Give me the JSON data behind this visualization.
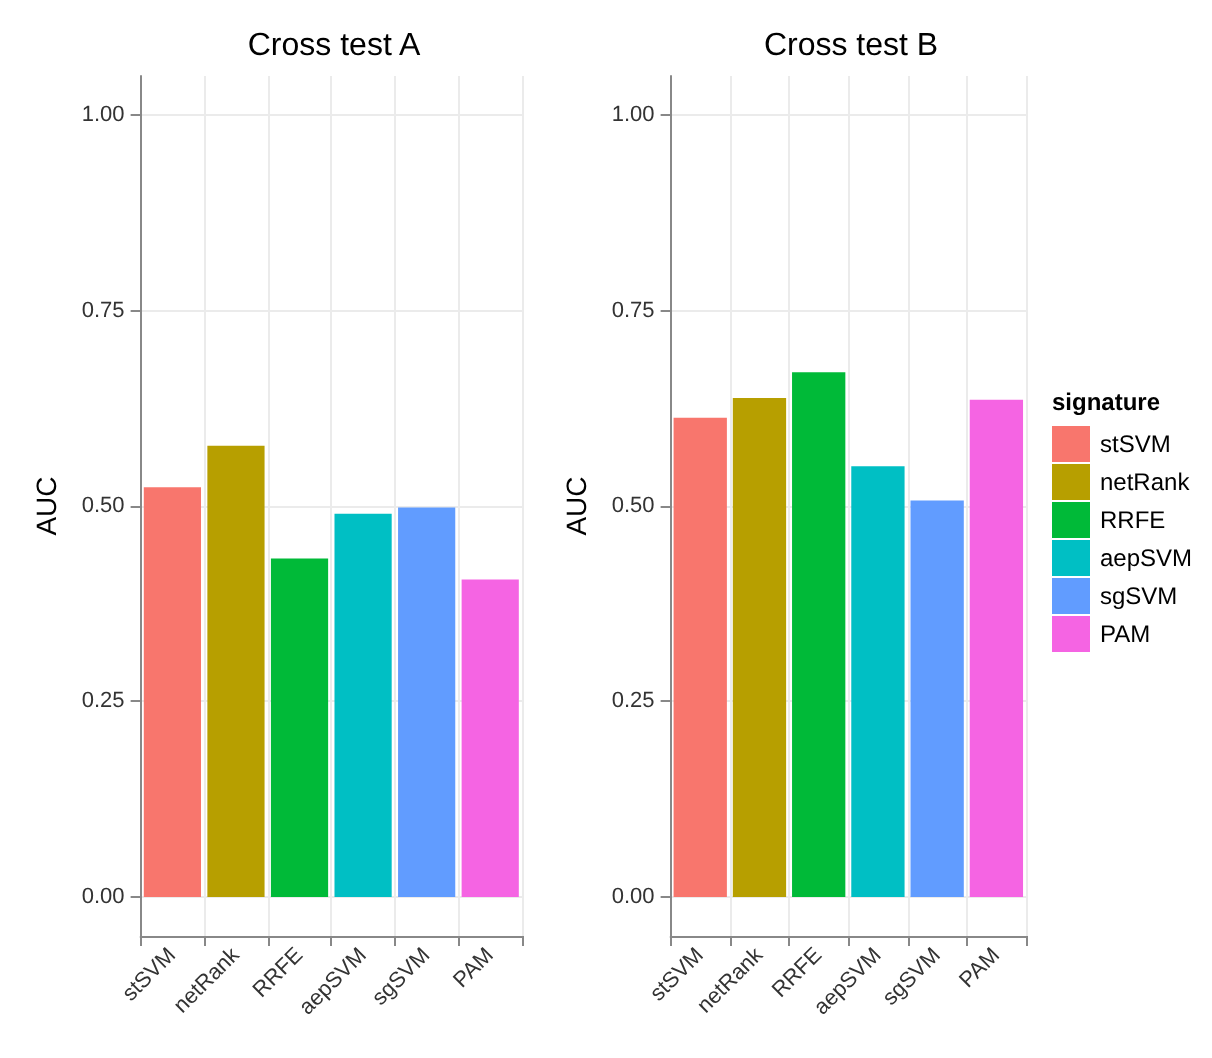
{
  "chart_data": [
    {
      "type": "bar",
      "title": "Cross test A",
      "ylabel": "AUC",
      "categories": [
        "stSVM",
        "netRank",
        "RRFE",
        "aepSVM",
        "sgSVM",
        "PAM"
      ],
      "stacked": true,
      "series": [
        {
          "color": "#f8766d",
          "values": [
            0.524,
            null,
            null,
            null,
            null,
            null
          ]
        },
        {
          "color": "#b79f00",
          "values": [
            null,
            0.577,
            null,
            null,
            null,
            null
          ]
        },
        {
          "color": "#00ba38",
          "values": [
            null,
            null,
            0.433,
            null,
            null,
            null
          ]
        },
        {
          "color": "#00bfc4",
          "values": [
            null,
            null,
            null,
            0.49,
            null,
            null
          ]
        },
        {
          "color": "#619cff",
          "values": [
            null,
            null,
            null,
            null,
            0.498,
            null
          ]
        },
        {
          "color": "#f564e3",
          "values": [
            null,
            null,
            null,
            null,
            null,
            0.406
          ]
        }
      ],
      "ylim": [
        -0.05,
        1.05
      ],
      "yticks": [
        {
          "value": 0,
          "label": "0.00"
        },
        {
          "value": 0.25,
          "label": "0.25"
        },
        {
          "value": 0.5,
          "label": "0.50"
        },
        {
          "value": 0.75,
          "label": "0.75"
        },
        {
          "value": 1,
          "label": "1.00"
        }
      ],
      "grid": true
    },
    {
      "type": "bar",
      "title": "Cross test B",
      "ylabel": "AUC",
      "legend_title": "signature",
      "categories": [
        "stSVM",
        "netRank",
        "RRFE",
        "aepSVM",
        "sgSVM",
        "PAM"
      ],
      "stacked": true,
      "series": [
        {
          "name": "stSVM",
          "color": "#f8766d",
          "values": [
            0.613,
            null,
            null,
            null,
            null,
            null
          ]
        },
        {
          "name": "netRank",
          "color": "#b79f00",
          "values": [
            null,
            0.638,
            null,
            null,
            null,
            null
          ]
        },
        {
          "name": "RRFE",
          "color": "#00ba38",
          "values": [
            null,
            null,
            0.671,
            null,
            null,
            null
          ]
        },
        {
          "name": "aepSVM",
          "color": "#00bfc4",
          "values": [
            null,
            null,
            null,
            0.551,
            null,
            null
          ]
        },
        {
          "name": "sgSVM",
          "color": "#619cff",
          "values": [
            null,
            null,
            null,
            null,
            0.507,
            null
          ]
        },
        {
          "name": "PAM",
          "color": "#f564e3",
          "values": [
            null,
            null,
            null,
            null,
            null,
            0.636
          ]
        }
      ],
      "ylim": [
        -0.05,
        1.05
      ],
      "yticks": [
        {
          "value": 0,
          "label": "0.00"
        },
        {
          "value": 0.25,
          "label": "0.25"
        },
        {
          "value": 0.5,
          "label": "0.50"
        },
        {
          "value": 0.75,
          "label": "0.75"
        },
        {
          "value": 1,
          "label": "1.00"
        }
      ],
      "grid": true,
      "legend": "right"
    }
  ]
}
